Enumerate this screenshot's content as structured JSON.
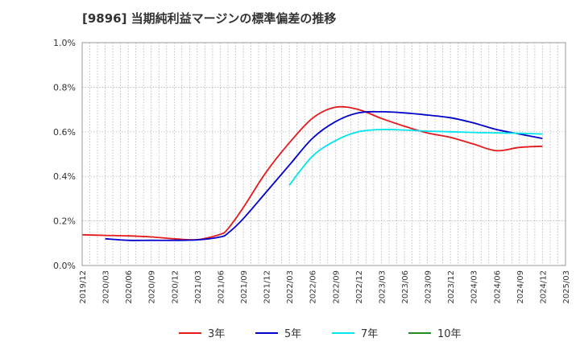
{
  "chart_data": {
    "type": "line",
    "title": "[9896]  当期純利益マージンの標準偏差の推移",
    "x": [
      "2019/12",
      "2020/03",
      "2020/06",
      "2020/09",
      "2020/12",
      "2021/03",
      "2021/06",
      "2021/09",
      "2021/12",
      "2022/03",
      "2022/06",
      "2022/09",
      "2022/12",
      "2023/03",
      "2023/06",
      "2023/09",
      "2023/12",
      "2024/03",
      "2024/06",
      "2024/09",
      "2024/12",
      "2025/03"
    ],
    "y_ticks": [
      "0.0%",
      "0.2%",
      "0.4%",
      "0.6%",
      "0.8%",
      "1.0%"
    ],
    "ylim": [
      0,
      1.0
    ],
    "yunit": "%",
    "grid": true,
    "legend_position": "bottom",
    "series": [
      {
        "name": "3年",
        "color": "#e41a1c",
        "points": [
          [
            "2019/12",
            0.138
          ],
          [
            "2020/03",
            0.135
          ],
          [
            "2020/06",
            0.133
          ],
          [
            "2020/09",
            0.128
          ],
          [
            "2020/12",
            0.12
          ],
          [
            "2021/03",
            0.116
          ],
          [
            "2021/06",
            0.14
          ],
          [
            "2021/07",
            0.165
          ],
          [
            "2021/09",
            0.26
          ],
          [
            "2021/12",
            0.42
          ],
          [
            "2022/03",
            0.55
          ],
          [
            "2022/06",
            0.66
          ],
          [
            "2022/09",
            0.71
          ],
          [
            "2022/12",
            0.7
          ],
          [
            "2023/03",
            0.66
          ],
          [
            "2023/06",
            0.625
          ],
          [
            "2023/09",
            0.595
          ],
          [
            "2023/12",
            0.575
          ],
          [
            "2024/03",
            0.545
          ],
          [
            "2024/06",
            0.515
          ],
          [
            "2024/09",
            0.53
          ],
          [
            "2024/12",
            0.535
          ]
        ]
      },
      {
        "name": "5年",
        "color": "#0000cc",
        "points": [
          [
            "2020/03",
            0.12
          ],
          [
            "2020/06",
            0.113
          ],
          [
            "2020/09",
            0.113
          ],
          [
            "2020/12",
            0.113
          ],
          [
            "2021/03",
            0.115
          ],
          [
            "2021/06",
            0.128
          ],
          [
            "2021/07",
            0.145
          ],
          [
            "2021/09",
            0.21
          ],
          [
            "2021/12",
            0.33
          ],
          [
            "2022/03",
            0.45
          ],
          [
            "2022/06",
            0.57
          ],
          [
            "2022/09",
            0.645
          ],
          [
            "2022/12",
            0.685
          ],
          [
            "2023/03",
            0.69
          ],
          [
            "2023/06",
            0.685
          ],
          [
            "2023/09",
            0.675
          ],
          [
            "2023/12",
            0.663
          ],
          [
            "2024/03",
            0.64
          ],
          [
            "2024/06",
            0.61
          ],
          [
            "2024/09",
            0.59
          ],
          [
            "2024/12",
            0.57
          ]
        ]
      },
      {
        "name": "7年",
        "color": "#00e5ee",
        "points": [
          [
            "2022/03",
            0.36
          ],
          [
            "2022/06",
            0.49
          ],
          [
            "2022/09",
            0.56
          ],
          [
            "2022/12",
            0.6
          ],
          [
            "2023/03",
            0.61
          ],
          [
            "2023/06",
            0.608
          ],
          [
            "2023/09",
            0.603
          ],
          [
            "2023/12",
            0.6
          ],
          [
            "2024/03",
            0.597
          ],
          [
            "2024/06",
            0.595
          ],
          [
            "2024/09",
            0.593
          ],
          [
            "2024/12",
            0.59
          ]
        ]
      },
      {
        "name": "10年",
        "color": "#228b22",
        "points": []
      }
    ]
  }
}
